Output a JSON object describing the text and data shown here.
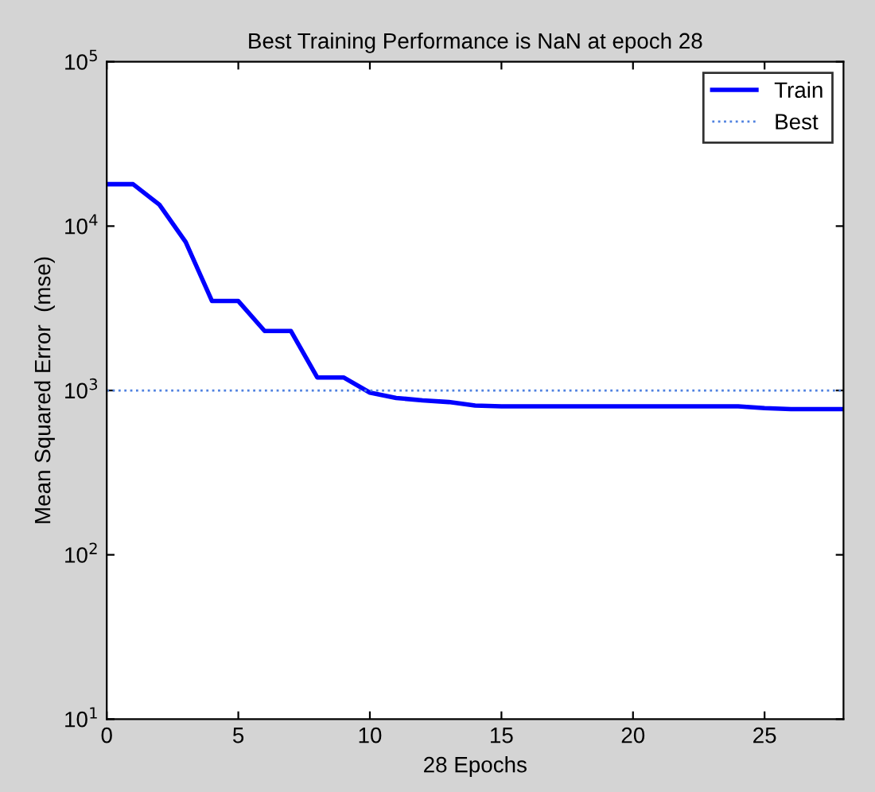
{
  "chart_data": {
    "type": "line",
    "title": "Best Training Performance is NaN at epoch 28",
    "xlabel": "28 Epochs",
    "ylabel": "Mean Squared Error  (mse)",
    "x": [
      0,
      1,
      2,
      3,
      4,
      5,
      6,
      7,
      8,
      9,
      10,
      11,
      12,
      13,
      14,
      15,
      16,
      17,
      18,
      19,
      20,
      21,
      22,
      23,
      24,
      25,
      26,
      27,
      28
    ],
    "series": [
      {
        "name": "Train",
        "color": "#0000ff",
        "line_style": "solid",
        "values": [
          18000,
          18000,
          13500,
          8000,
          3500,
          3500,
          2300,
          2300,
          1200,
          1200,
          970,
          900,
          870,
          850,
          810,
          800,
          800,
          800,
          800,
          800,
          800,
          800,
          800,
          800,
          800,
          780,
          770,
          770,
          770
        ]
      },
      {
        "name": "Best",
        "color": "#4f81e0",
        "line_style": "dotted",
        "x": [
          0,
          28
        ],
        "values": [
          1000,
          1000
        ]
      }
    ],
    "log": "y",
    "xlim": [
      0,
      28
    ],
    "ylim": [
      10,
      100000
    ],
    "xticks": [
      0,
      5,
      10,
      15,
      20,
      25
    ],
    "yticks": [
      {
        "value": 10,
        "label": "10$^{1}$"
      },
      {
        "value": 100,
        "label": "10$^{2}$"
      },
      {
        "value": 1000,
        "label": "10$^{3}$"
      },
      {
        "value": 10000,
        "label": "10$^{4}$"
      },
      {
        "value": 100000,
        "label": "10$^{5}$"
      }
    ],
    "grid": false,
    "legend": "top right",
    "marker": "none"
  }
}
